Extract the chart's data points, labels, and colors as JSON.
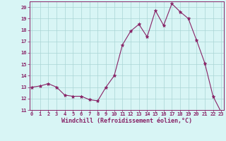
{
  "x": [
    0,
    1,
    2,
    3,
    4,
    5,
    6,
    7,
    8,
    9,
    10,
    11,
    12,
    13,
    14,
    15,
    16,
    17,
    18,
    19,
    20,
    21,
    22,
    23
  ],
  "y": [
    13.0,
    13.1,
    13.3,
    13.0,
    12.3,
    12.2,
    12.2,
    11.9,
    11.8,
    13.0,
    14.0,
    16.7,
    17.9,
    18.5,
    17.4,
    19.7,
    18.4,
    20.3,
    19.6,
    19.0,
    17.1,
    15.1,
    12.2,
    10.8
  ],
  "line_color": "#882266",
  "marker": "*",
  "markersize": 3.5,
  "linewidth": 0.8,
  "bg_color": "#d8f5f5",
  "grid_color": "#aad4d4",
  "xlabel": "Windchill (Refroidissement éolien,°C)",
  "tick_color": "#882266",
  "ylim": [
    11,
    20.5
  ],
  "xlim": [
    -0.3,
    23.3
  ],
  "yticks": [
    11,
    12,
    13,
    14,
    15,
    16,
    17,
    18,
    19,
    20
  ],
  "xticks": [
    0,
    1,
    2,
    3,
    4,
    5,
    6,
    7,
    8,
    9,
    10,
    11,
    12,
    13,
    14,
    15,
    16,
    17,
    18,
    19,
    20,
    21,
    22,
    23
  ],
  "tick_fontsize": 5.0,
  "xlabel_fontsize": 6.0
}
